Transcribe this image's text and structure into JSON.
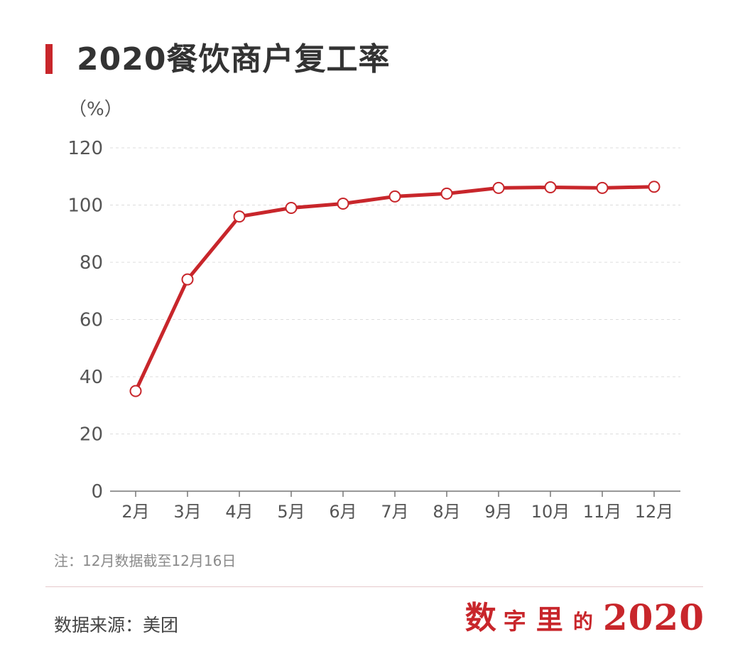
{
  "title": "2020餐饮商户复工率",
  "unit_label": "（%）",
  "note": "注：12月数据截至12月16日",
  "source": "数据来源：美团",
  "brand": {
    "char1": "数",
    "char2": "字",
    "char3": "里",
    "char4": "的",
    "year": "2020"
  },
  "colors": {
    "line": "#c8262b",
    "marker_fill": "#ffffff",
    "grid": "#dddddd",
    "axis": "#777777",
    "tick_text": "#555555"
  },
  "chart_data": {
    "type": "line",
    "title": "2020餐饮商户复工率",
    "ylabel": "（%）",
    "xlabel": "",
    "categories": [
      "2月",
      "3月",
      "4月",
      "5月",
      "6月",
      "7月",
      "8月",
      "9月",
      "10月",
      "11月",
      "12月"
    ],
    "series": [
      {
        "values": [
          35,
          74,
          96,
          99,
          100.5,
          103,
          104,
          106,
          106.2,
          106,
          106.4
        ]
      }
    ],
    "ylim": [
      0,
      120
    ],
    "yticks": [
      0,
      20,
      40,
      60,
      80,
      100,
      120
    ],
    "grid": true,
    "grid_style": "dashed-horizontal"
  }
}
